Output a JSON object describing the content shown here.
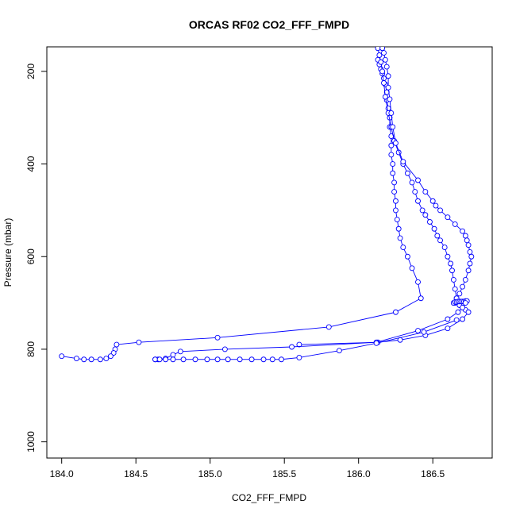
{
  "chart_data": {
    "type": "line",
    "title": "ORCAS RF02 CO2_FFF_FMPD",
    "xlabel": "CO2_FFF_FMPD",
    "ylabel": "Pressure (mbar)",
    "xlim": [
      183.9,
      186.9
    ],
    "ylim": [
      1035,
      147
    ],
    "y_inverted": true,
    "x_ticks": [
      "184.0",
      "184.5",
      "185.0",
      "185.5",
      "186.0",
      "186.5"
    ],
    "y_ticks": [
      "200",
      "400",
      "600",
      "800",
      "1000"
    ],
    "grid": false,
    "legend": "none",
    "series_color": "#0000ff",
    "series": [
      {
        "x": [
          186.13,
          186.14,
          186.15,
          186.16,
          186.17,
          186.18,
          186.19,
          186.19,
          186.2,
          186.21,
          186.21,
          186.22,
          186.22,
          186.22,
          186.23,
          186.23,
          186.24,
          186.24,
          186.25,
          186.25,
          186.26,
          186.27,
          186.28,
          186.3,
          186.33,
          186.36,
          186.4,
          186.42,
          186.25,
          185.8,
          185.05,
          184.52,
          184.37,
          184.36,
          184.35,
          184.33,
          184.3,
          184.26,
          184.2,
          184.15,
          184.1,
          184.0
        ],
        "y": [
          175,
          185,
          195,
          205,
          215,
          228,
          245,
          262,
          280,
          300,
          320,
          340,
          360,
          380,
          400,
          420,
          440,
          460,
          480,
          500,
          520,
          540,
          560,
          580,
          600,
          625,
          655,
          690,
          720,
          752,
          775,
          785,
          790,
          800,
          808,
          815,
          820,
          822,
          822,
          822,
          820,
          815
        ]
      },
      {
        "x": [
          186.13,
          186.14,
          186.15,
          186.16,
          186.17,
          186.18,
          186.2,
          186.22,
          186.24,
          186.27,
          186.3,
          186.33,
          186.36,
          186.38,
          186.4,
          186.43,
          186.45,
          186.48,
          186.51,
          186.53,
          186.55,
          186.58,
          186.6,
          186.62,
          186.63,
          186.64,
          186.65,
          186.66,
          186.68,
          186.7,
          186.72,
          186.74,
          186.7,
          186.6,
          186.45,
          186.28,
          186.13,
          185.6
        ],
        "y": [
          150,
          165,
          180,
          200,
          225,
          255,
          290,
          320,
          350,
          375,
          400,
          420,
          440,
          460,
          480,
          500,
          510,
          525,
          540,
          555,
          565,
          580,
          600,
          615,
          630,
          650,
          670,
          690,
          705,
          710,
          715,
          720,
          735,
          755,
          770,
          780,
          785,
          790
        ]
      },
      {
        "x": [
          186.16,
          186.17,
          186.18,
          186.19,
          186.2,
          186.2,
          186.21,
          186.22,
          186.23,
          186.25,
          186.3,
          186.4,
          186.45,
          186.5,
          186.52,
          186.55,
          186.6,
          186.65,
          186.7,
          186.72,
          186.73,
          186.74,
          186.75,
          186.76,
          186.75,
          186.74,
          186.72,
          186.7,
          186.68,
          186.66,
          186.65,
          186.64
        ],
        "y": [
          150,
          160,
          175,
          190,
          210,
          235,
          260,
          290,
          320,
          355,
          395,
          435,
          460,
          480,
          490,
          500,
          515,
          530,
          545,
          555,
          565,
          575,
          590,
          600,
          615,
          630,
          650,
          665,
          680,
          690,
          700,
          700
        ]
      },
      {
        "x": [
          186.64,
          186.65,
          186.66,
          186.67,
          186.68,
          186.69,
          186.7,
          186.71,
          186.72,
          186.73,
          186.72,
          186.7,
          186.67,
          186.6,
          186.4,
          186.12,
          185.55,
          185.1,
          184.8,
          184.75,
          184.7,
          184.65,
          184.63
        ],
        "y": [
          700,
          698,
          698,
          697,
          697,
          697,
          697,
          697,
          696,
          696,
          700,
          710,
          720,
          735,
          760,
          785,
          795,
          800,
          805,
          812,
          820,
          822,
          822
        ]
      },
      {
        "x": [
          184.63,
          184.66,
          184.7,
          184.75,
          184.82,
          184.9,
          184.98,
          185.05,
          185.12,
          185.2,
          185.28,
          185.36,
          185.42,
          185.48,
          185.6,
          185.87,
          186.12,
          186.44,
          186.66
        ],
        "y": [
          822,
          822,
          822,
          822,
          822,
          822,
          822,
          822,
          822,
          822,
          822,
          822,
          822,
          822,
          818,
          803,
          787,
          763,
          737
        ]
      }
    ]
  }
}
